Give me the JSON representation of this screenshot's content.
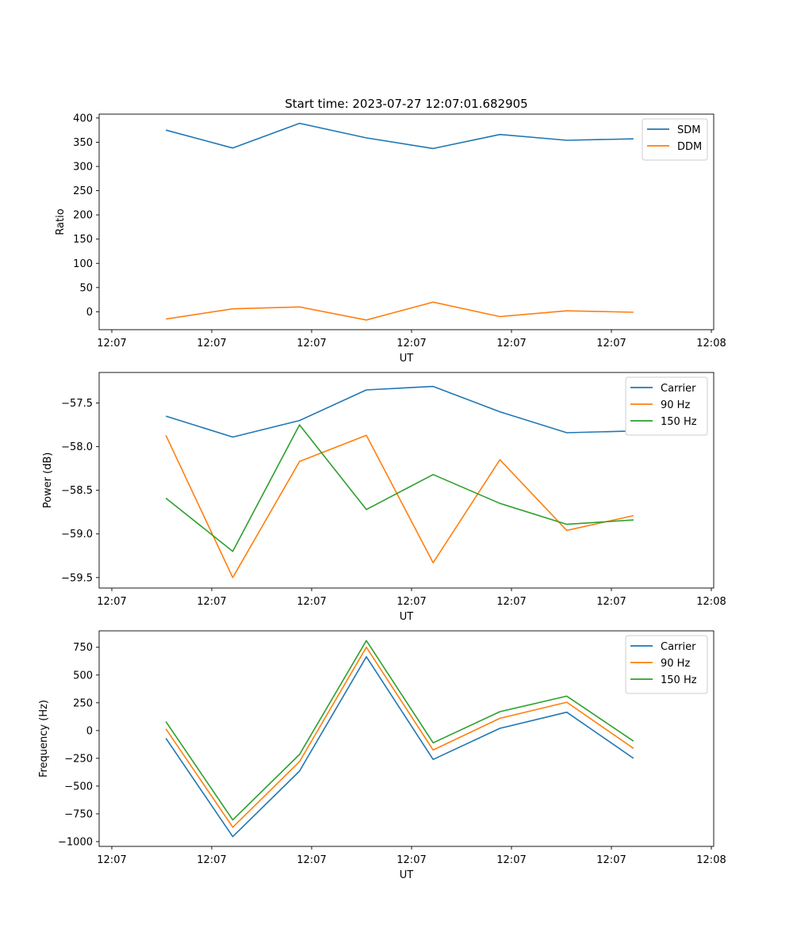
{
  "figure_title": "Start time: 2023-07-27 12:07:01.682905",
  "colors": {
    "blue": "#1f77b4",
    "orange": "#ff7f0e",
    "green": "#2ca02c"
  },
  "chart_data": [
    {
      "type": "line",
      "title": "Start time: 2023-07-27 12:07:01.682905",
      "xlabel": "UT",
      "ylabel": "Ratio",
      "x_tick_labels": [
        "12:07",
        "12:07",
        "12:07",
        "12:07",
        "12:07",
        "12:07",
        "12:08"
      ],
      "x": [
        1,
        2,
        3,
        4,
        5,
        6,
        7,
        8
      ],
      "xlim": [
        0,
        9.2
      ],
      "ylim": [
        -37,
        408
      ],
      "y_ticks": [
        0,
        50,
        100,
        150,
        200,
        250,
        300,
        350,
        400
      ],
      "y_tick_labels": [
        "0",
        "50",
        "100",
        "150",
        "200",
        "250",
        "300",
        "350",
        "400"
      ],
      "legend_position": "top-right",
      "series": [
        {
          "name": "SDM",
          "color": "#1f77b4",
          "values": [
            375,
            338,
            389,
            359,
            337,
            366,
            354,
            357
          ]
        },
        {
          "name": "DDM",
          "color": "#ff7f0e",
          "values": [
            -15,
            6,
            10,
            -17,
            20,
            -10,
            2,
            -1
          ]
        }
      ]
    },
    {
      "type": "line",
      "title": "",
      "xlabel": "UT",
      "ylabel": "Power (dB)",
      "x_tick_labels": [
        "12:07",
        "12:07",
        "12:07",
        "12:07",
        "12:07",
        "12:07",
        "12:08"
      ],
      "x": [
        1,
        2,
        3,
        4,
        5,
        6,
        7,
        8
      ],
      "xlim": [
        0,
        9.2
      ],
      "ylim": [
        -59.62,
        -57.15
      ],
      "y_ticks": [
        -59.5,
        -59.0,
        -58.5,
        -58.0,
        -57.5
      ],
      "y_tick_labels": [
        "−59.5",
        "−59.0",
        "−58.5",
        "−58.0",
        "−57.5"
      ],
      "legend_position": "top-right",
      "series": [
        {
          "name": "Carrier",
          "color": "#1f77b4",
          "values": [
            -57.65,
            -57.89,
            -57.7,
            -57.35,
            -57.31,
            -57.6,
            -57.84,
            -57.82
          ]
        },
        {
          "name": "90 Hz",
          "color": "#ff7f0e",
          "values": [
            -57.87,
            -59.5,
            -58.17,
            -57.87,
            -59.33,
            -58.15,
            -58.96,
            -58.79
          ]
        },
        {
          "name": "150 Hz",
          "color": "#2ca02c",
          "values": [
            -58.59,
            -59.2,
            -57.75,
            -58.72,
            -58.32,
            -58.65,
            -58.89,
            -58.84
          ]
        }
      ]
    },
    {
      "type": "line",
      "title": "",
      "xlabel": "UT",
      "ylabel": "Frequency (Hz)",
      "x_tick_labels": [
        "12:07",
        "12:07",
        "12:07",
        "12:07",
        "12:07",
        "12:07",
        "12:08"
      ],
      "x": [
        1,
        2,
        3,
        4,
        5,
        6,
        7,
        8
      ],
      "xlim": [
        0,
        9.2
      ],
      "ylim": [
        -1043,
        898
      ],
      "y_ticks": [
        -1000,
        -750,
        -500,
        -250,
        0,
        250,
        500,
        750
      ],
      "y_tick_labels": [
        "−1000",
        "−750",
        "−500",
        "−250",
        "0",
        "250",
        "500",
        "750"
      ],
      "legend_position": "top-right",
      "series": [
        {
          "name": "Carrier",
          "color": "#1f77b4",
          "values": [
            -70,
            -955,
            -365,
            665,
            -260,
            20,
            165,
            -250
          ]
        },
        {
          "name": "90 Hz",
          "color": "#ff7f0e",
          "values": [
            15,
            -870,
            -280,
            750,
            -175,
            110,
            255,
            -160
          ]
        },
        {
          "name": "150 Hz",
          "color": "#2ca02c",
          "values": [
            80,
            -805,
            -215,
            810,
            -110,
            170,
            310,
            -95
          ]
        }
      ]
    }
  ]
}
